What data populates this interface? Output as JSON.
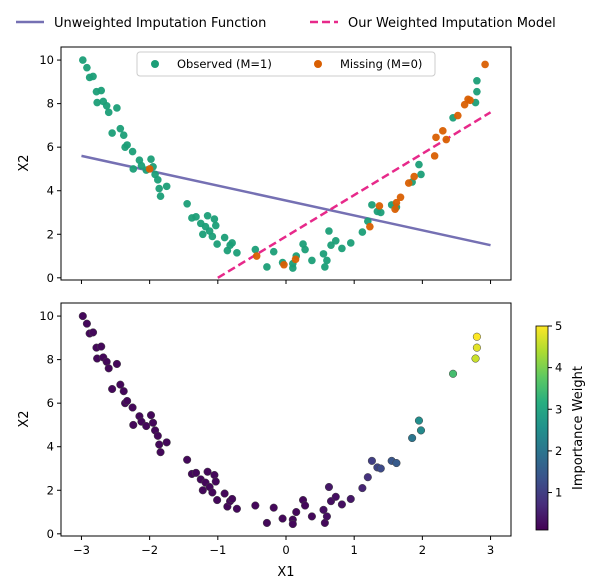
{
  "figure_legend": {
    "items": [
      {
        "label": "Unweighted Imputation Function",
        "color": "#7570b3",
        "style": "solid"
      },
      {
        "label": "Our Weighted Imputation Model",
        "color": "#e7298a",
        "style": "dashed"
      }
    ]
  },
  "colors": {
    "observed": "#1b9e77",
    "missing": "#d95f02",
    "unweighted_line": "#7570b3",
    "weighted_line": "#e7298a"
  },
  "chart_data": [
    {
      "type": "scatter",
      "panel": "top",
      "xlabel": "",
      "ylabel": "X2",
      "xlim": [
        -3.3,
        3.3
      ],
      "ylim": [
        -0.1,
        10.6
      ],
      "yticks": [
        0,
        2,
        4,
        6,
        8,
        10
      ],
      "legend": {
        "placement": "upper-center",
        "entries": [
          "Observed (M=1)",
          "Missing (M=0)"
        ]
      },
      "series": [
        {
          "name": "Observed (M=1)",
          "color": "#1b9e77",
          "points": [
            [
              -2.98,
              10.0
            ],
            [
              -2.92,
              9.65
            ],
            [
              -2.88,
              9.2
            ],
            [
              -2.83,
              9.25
            ],
            [
              -2.78,
              8.55
            ],
            [
              -2.77,
              8.05
            ],
            [
              -2.71,
              8.6
            ],
            [
              -2.68,
              8.1
            ],
            [
              -2.63,
              7.9
            ],
            [
              -2.6,
              7.6
            ],
            [
              -2.55,
              6.65
            ],
            [
              -2.48,
              7.8
            ],
            [
              -2.43,
              6.85
            ],
            [
              -2.38,
              6.55
            ],
            [
              -2.36,
              6.0
            ],
            [
              -2.33,
              6.1
            ],
            [
              -2.25,
              5.8
            ],
            [
              -2.24,
              5.0
            ],
            [
              -2.15,
              5.4
            ],
            [
              -2.12,
              5.15
            ],
            [
              -2.05,
              4.95
            ],
            [
              -1.98,
              5.45
            ],
            [
              -1.95,
              5.1
            ],
            [
              -1.92,
              4.75
            ],
            [
              -1.88,
              4.5
            ],
            [
              -1.86,
              4.1
            ],
            [
              -1.84,
              3.75
            ],
            [
              -1.75,
              4.2
            ],
            [
              -1.45,
              3.4
            ],
            [
              -1.38,
              2.75
            ],
            [
              -1.32,
              2.8
            ],
            [
              -1.25,
              2.5
            ],
            [
              -1.22,
              2.0
            ],
            [
              -1.18,
              2.35
            ],
            [
              -1.15,
              2.85
            ],
            [
              -1.12,
              2.15
            ],
            [
              -1.08,
              1.9
            ],
            [
              -1.05,
              2.7
            ],
            [
              -1.03,
              2.4
            ],
            [
              -1.01,
              1.55
            ],
            [
              -0.9,
              1.85
            ],
            [
              -0.86,
              1.25
            ],
            [
              -0.82,
              1.5
            ],
            [
              -0.79,
              1.6
            ],
            [
              -0.72,
              1.15
            ],
            [
              -0.45,
              1.3
            ],
            [
              -0.28,
              0.5
            ],
            [
              -0.18,
              1.2
            ],
            [
              -0.05,
              0.7
            ],
            [
              0.1,
              0.65
            ],
            [
              0.1,
              0.45
            ],
            [
              0.15,
              1.0
            ],
            [
              0.25,
              1.55
            ],
            [
              0.28,
              1.3
            ],
            [
              0.38,
              0.8
            ],
            [
              0.55,
              1.1
            ],
            [
              0.57,
              0.5
            ],
            [
              0.6,
              0.8
            ],
            [
              0.63,
              2.15
            ],
            [
              0.66,
              1.5
            ],
            [
              0.73,
              1.7
            ],
            [
              0.82,
              1.35
            ],
            [
              0.95,
              1.6
            ],
            [
              1.12,
              2.1
            ],
            [
              1.2,
              2.6
            ],
            [
              1.26,
              3.35
            ],
            [
              1.34,
              3.05
            ],
            [
              1.39,
              3.0
            ],
            [
              1.55,
              3.35
            ],
            [
              1.62,
              3.25
            ],
            [
              1.85,
              4.4
            ],
            [
              1.95,
              5.2
            ],
            [
              1.98,
              4.75
            ],
            [
              2.45,
              7.35
            ],
            [
              2.78,
              8.05
            ],
            [
              2.8,
              8.55
            ],
            [
              2.8,
              9.05
            ]
          ]
        },
        {
          "name": "Missing (M=0)",
          "color": "#d95f02",
          "points": [
            [
              -2.0,
              5.0
            ],
            [
              -0.43,
              1.0
            ],
            [
              -0.03,
              0.6
            ],
            [
              0.14,
              0.85
            ],
            [
              1.23,
              2.35
            ],
            [
              1.37,
              3.3
            ],
            [
              1.6,
              3.15
            ],
            [
              1.62,
              3.45
            ],
            [
              1.68,
              3.7
            ],
            [
              1.8,
              4.35
            ],
            [
              1.88,
              4.65
            ],
            [
              2.18,
              5.6
            ],
            [
              2.2,
              6.45
            ],
            [
              2.3,
              6.75
            ],
            [
              2.35,
              6.35
            ],
            [
              2.52,
              7.45
            ],
            [
              2.62,
              7.95
            ],
            [
              2.67,
              8.2
            ],
            [
              2.7,
              8.15
            ],
            [
              2.92,
              9.8
            ]
          ]
        }
      ],
      "lines": [
        {
          "name": "Unweighted Imputation Function",
          "color": "#7570b3",
          "style": "solid",
          "x": [
            -3.0,
            3.0
          ],
          "y": [
            5.6,
            1.5
          ]
        },
        {
          "name": "Our Weighted Imputation Model",
          "color": "#e7298a",
          "style": "dashed",
          "x": [
            -1.0,
            3.0
          ],
          "y": [
            0.0,
            7.6
          ]
        }
      ]
    },
    {
      "type": "scatter",
      "panel": "bottom",
      "xlabel": "X1",
      "ylabel": "X2",
      "xlim": [
        -3.3,
        3.3
      ],
      "ylim": [
        -0.1,
        10.6
      ],
      "xticks": [
        -3,
        -2,
        -1,
        0,
        1,
        2,
        3
      ],
      "yticks": [
        0,
        2,
        4,
        6,
        8,
        10
      ],
      "colorbar": {
        "label": "Importance Weight",
        "range": [
          0.1,
          5
        ],
        "ticks": [
          1,
          2,
          3,
          4,
          5
        ],
        "colormap": "viridis"
      },
      "points": [
        [
          -2.98,
          10.0,
          0.2
        ],
        [
          -2.92,
          9.65,
          0.2
        ],
        [
          -2.88,
          9.2,
          0.2
        ],
        [
          -2.83,
          9.25,
          0.2
        ],
        [
          -2.78,
          8.55,
          0.2
        ],
        [
          -2.77,
          8.05,
          0.2
        ],
        [
          -2.71,
          8.6,
          0.2
        ],
        [
          -2.68,
          8.1,
          0.2
        ],
        [
          -2.63,
          7.9,
          0.2
        ],
        [
          -2.6,
          7.6,
          0.2
        ],
        [
          -2.55,
          6.65,
          0.2
        ],
        [
          -2.48,
          7.8,
          0.2
        ],
        [
          -2.43,
          6.85,
          0.2
        ],
        [
          -2.38,
          6.55,
          0.2
        ],
        [
          -2.36,
          6.0,
          0.2
        ],
        [
          -2.33,
          6.1,
          0.2
        ],
        [
          -2.25,
          5.8,
          0.2
        ],
        [
          -2.24,
          5.0,
          0.2
        ],
        [
          -2.15,
          5.4,
          0.2
        ],
        [
          -2.12,
          5.15,
          0.2
        ],
        [
          -2.05,
          4.95,
          0.2
        ],
        [
          -1.98,
          5.45,
          0.2
        ],
        [
          -1.95,
          5.1,
          0.2
        ],
        [
          -1.92,
          4.75,
          0.2
        ],
        [
          -1.88,
          4.5,
          0.2
        ],
        [
          -1.86,
          4.1,
          0.2
        ],
        [
          -1.84,
          3.75,
          0.2
        ],
        [
          -1.75,
          4.2,
          0.2
        ],
        [
          -1.45,
          3.4,
          0.2
        ],
        [
          -1.38,
          2.75,
          0.2
        ],
        [
          -1.32,
          2.8,
          0.2
        ],
        [
          -1.25,
          2.5,
          0.2
        ],
        [
          -1.22,
          2.0,
          0.2
        ],
        [
          -1.18,
          2.35,
          0.2
        ],
        [
          -1.15,
          2.85,
          0.2
        ],
        [
          -1.12,
          2.15,
          0.2
        ],
        [
          -1.08,
          1.9,
          0.2
        ],
        [
          -1.05,
          2.7,
          0.2
        ],
        [
          -1.03,
          2.4,
          0.2
        ],
        [
          -1.01,
          1.55,
          0.2
        ],
        [
          -0.9,
          1.85,
          0.2
        ],
        [
          -0.86,
          1.25,
          0.2
        ],
        [
          -0.82,
          1.5,
          0.2
        ],
        [
          -0.79,
          1.6,
          0.2
        ],
        [
          -0.72,
          1.15,
          0.2
        ],
        [
          -0.45,
          1.3,
          0.2
        ],
        [
          -0.28,
          0.5,
          0.2
        ],
        [
          -0.18,
          1.2,
          0.2
        ],
        [
          -0.05,
          0.7,
          0.2
        ],
        [
          0.1,
          0.65,
          0.2
        ],
        [
          0.1,
          0.45,
          0.2
        ],
        [
          0.15,
          1.0,
          0.2
        ],
        [
          0.25,
          1.55,
          0.2
        ],
        [
          0.28,
          1.3,
          0.2
        ],
        [
          0.38,
          0.8,
          0.2
        ],
        [
          0.55,
          1.1,
          0.3
        ],
        [
          0.57,
          0.5,
          0.2
        ],
        [
          0.6,
          0.8,
          0.3
        ],
        [
          0.63,
          2.15,
          0.4
        ],
        [
          0.66,
          1.5,
          0.3
        ],
        [
          0.73,
          1.7,
          0.3
        ],
        [
          0.82,
          1.35,
          0.3
        ],
        [
          0.95,
          1.6,
          0.4
        ],
        [
          1.12,
          2.1,
          0.6
        ],
        [
          1.2,
          2.6,
          0.8
        ],
        [
          1.26,
          3.35,
          1.0
        ],
        [
          1.34,
          3.05,
          1.1
        ],
        [
          1.39,
          3.0,
          1.2
        ],
        [
          1.55,
          3.35,
          1.4
        ],
        [
          1.62,
          3.25,
          1.5
        ],
        [
          1.85,
          4.4,
          2.0
        ],
        [
          1.95,
          5.2,
          2.5
        ],
        [
          1.98,
          4.75,
          2.4
        ],
        [
          2.45,
          7.35,
          3.5
        ],
        [
          2.78,
          8.05,
          4.6
        ],
        [
          2.8,
          8.55,
          4.8
        ],
        [
          2.8,
          9.05,
          5.0
        ]
      ]
    }
  ]
}
